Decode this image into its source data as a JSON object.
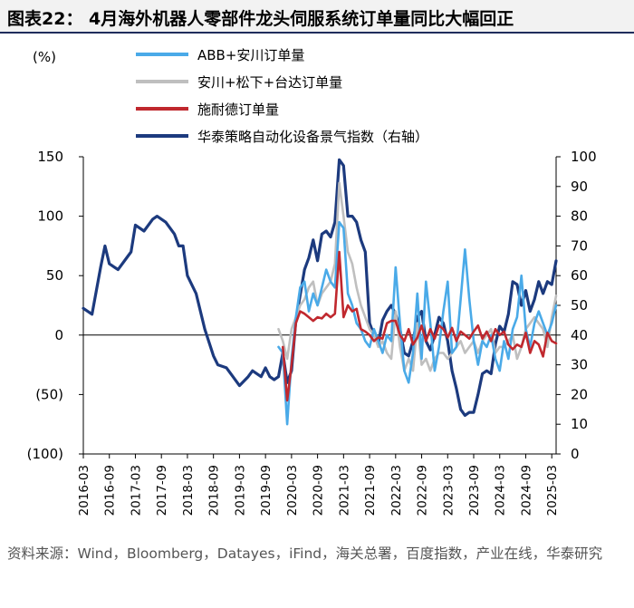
{
  "title": "图表22：  4月海外机器人零部件龙头伺服系统订单量同比大幅回正",
  "source": "资料来源：Wind，Bloomberg，Datayes，iFind，海关总署，百度指数，产业在线，华泰研究",
  "chart_data": {
    "type": "line",
    "left_axis": {
      "unit_label": "(%)",
      "range": [
        -100,
        150
      ],
      "ticks": [
        "150",
        "100",
        "50",
        "0",
        "(50)",
        "(100)"
      ]
    },
    "right_axis": {
      "range": [
        0,
        100
      ],
      "ticks": [
        "100",
        "90",
        "80",
        "70",
        "60",
        "50",
        "40",
        "30",
        "20",
        "10",
        "0"
      ]
    },
    "x_ticks": [
      "2016-03",
      "2016-09",
      "2017-03",
      "2017-09",
      "2018-03",
      "2018-09",
      "2019-03",
      "2019-09",
      "2020-03",
      "2020-09",
      "2021-03",
      "2021-09",
      "2022-03",
      "2022-09",
      "2023-03",
      "2023-09",
      "2024-03",
      "2024-09",
      "2025-03"
    ],
    "x_range": [
      "2016-03",
      "2025-04"
    ],
    "legend_position": "top-right",
    "series": [
      {
        "name": "ABB+安川订单量",
        "color": "#4aaae8",
        "axis": "left",
        "points": [
          [
            "2019-12",
            -10
          ],
          [
            "2020-01",
            -15
          ],
          [
            "2020-02",
            -75
          ],
          [
            "2020-03",
            -20
          ],
          [
            "2020-04",
            15
          ],
          [
            "2020-05",
            40
          ],
          [
            "2020-06",
            45
          ],
          [
            "2020-07",
            20
          ],
          [
            "2020-08",
            35
          ],
          [
            "2020-09",
            25
          ],
          [
            "2020-10",
            40
          ],
          [
            "2020-11",
            55
          ],
          [
            "2020-12",
            45
          ],
          [
            "2021-01",
            40
          ],
          [
            "2021-02",
            95
          ],
          [
            "2021-03",
            90
          ],
          [
            "2021-04",
            35
          ],
          [
            "2021-05",
            25
          ],
          [
            "2021-06",
            10
          ],
          [
            "2021-07",
            5
          ],
          [
            "2021-08",
            -5
          ],
          [
            "2021-09",
            -10
          ],
          [
            "2021-10",
            5
          ],
          [
            "2021-11",
            -5
          ],
          [
            "2021-12",
            -15
          ],
          [
            "2022-01",
            0
          ],
          [
            "2022-02",
            -5
          ],
          [
            "2022-03",
            57
          ],
          [
            "2022-04",
            10
          ],
          [
            "2022-05",
            -30
          ],
          [
            "2022-06",
            -40
          ],
          [
            "2022-07",
            -15
          ],
          [
            "2022-08",
            35
          ],
          [
            "2022-09",
            -20
          ],
          [
            "2022-10",
            45
          ],
          [
            "2022-11",
            10
          ],
          [
            "2022-12",
            -30
          ],
          [
            "2023-01",
            -10
          ],
          [
            "2023-02",
            20
          ],
          [
            "2023-03",
            45
          ],
          [
            "2023-04",
            -15
          ],
          [
            "2023-05",
            -10
          ],
          [
            "2023-06",
            30
          ],
          [
            "2023-07",
            72
          ],
          [
            "2023-08",
            30
          ],
          [
            "2023-09",
            -5
          ],
          [
            "2023-10",
            -25
          ],
          [
            "2023-11",
            -5
          ],
          [
            "2023-12",
            -10
          ],
          [
            "2024-01",
            0
          ],
          [
            "2024-02",
            -20
          ],
          [
            "2024-03",
            -30
          ],
          [
            "2024-04",
            -5
          ],
          [
            "2024-05",
            -20
          ],
          [
            "2024-06",
            5
          ],
          [
            "2024-07",
            15
          ],
          [
            "2024-08",
            50
          ],
          [
            "2024-09",
            5
          ],
          [
            "2024-10",
            -10
          ],
          [
            "2024-11",
            10
          ],
          [
            "2024-12",
            20
          ],
          [
            "2025-01",
            10
          ],
          [
            "2025-02",
            0
          ],
          [
            "2025-03",
            10
          ],
          [
            "2025-04",
            25
          ]
        ]
      },
      {
        "name": "安川+松下+台达订单量",
        "color": "#bfbfbf",
        "axis": "left",
        "points": [
          [
            "2019-12",
            5
          ],
          [
            "2020-01",
            -5
          ],
          [
            "2020-02",
            -20
          ],
          [
            "2020-03",
            5
          ],
          [
            "2020-04",
            15
          ],
          [
            "2020-05",
            25
          ],
          [
            "2020-06",
            30
          ],
          [
            "2020-07",
            40
          ],
          [
            "2020-08",
            45
          ],
          [
            "2020-09",
            25
          ],
          [
            "2020-10",
            35
          ],
          [
            "2020-11",
            40
          ],
          [
            "2020-12",
            45
          ],
          [
            "2021-01",
            60
          ],
          [
            "2021-02",
            128
          ],
          [
            "2021-03",
            100
          ],
          [
            "2021-04",
            70
          ],
          [
            "2021-05",
            60
          ],
          [
            "2021-06",
            40
          ],
          [
            "2021-07",
            25
          ],
          [
            "2021-08",
            15
          ],
          [
            "2021-09",
            5
          ],
          [
            "2021-10",
            0
          ],
          [
            "2021-11",
            -10
          ],
          [
            "2021-12",
            -5
          ],
          [
            "2022-01",
            -15
          ],
          [
            "2022-02",
            -20
          ],
          [
            "2022-03",
            20
          ],
          [
            "2022-04",
            -10
          ],
          [
            "2022-05",
            -30
          ],
          [
            "2022-06",
            -20
          ],
          [
            "2022-07",
            -30
          ],
          [
            "2022-08",
            10
          ],
          [
            "2022-09",
            -25
          ],
          [
            "2022-10",
            -20
          ],
          [
            "2022-11",
            -30
          ],
          [
            "2022-12",
            -20
          ],
          [
            "2023-01",
            -15
          ],
          [
            "2023-02",
            -15
          ],
          [
            "2023-03",
            -20
          ],
          [
            "2023-04",
            -15
          ],
          [
            "2023-05",
            -10
          ],
          [
            "2023-06",
            -5
          ],
          [
            "2023-07",
            -15
          ],
          [
            "2023-08",
            -10
          ],
          [
            "2023-09",
            -5
          ],
          [
            "2023-10",
            -15
          ],
          [
            "2023-11",
            -5
          ],
          [
            "2023-12",
            0
          ],
          [
            "2024-01",
            5
          ],
          [
            "2024-02",
            -15
          ],
          [
            "2024-03",
            -10
          ],
          [
            "2024-04",
            -10
          ],
          [
            "2024-05",
            -5
          ],
          [
            "2024-06",
            0
          ],
          [
            "2024-07",
            -20
          ],
          [
            "2024-08",
            -10
          ],
          [
            "2024-09",
            5
          ],
          [
            "2024-10",
            10
          ],
          [
            "2024-11",
            15
          ],
          [
            "2024-12",
            10
          ],
          [
            "2025-01",
            5
          ],
          [
            "2025-02",
            -10
          ],
          [
            "2025-03",
            15
          ],
          [
            "2025-04",
            33
          ]
        ]
      },
      {
        "name": "施耐德订单量",
        "color": "#c0282e",
        "axis": "left",
        "points": [
          [
            "2020-01",
            -10
          ],
          [
            "2020-02",
            -55
          ],
          [
            "2020-03",
            -25
          ],
          [
            "2020-04",
            10
          ],
          [
            "2020-05",
            20
          ],
          [
            "2020-06",
            18
          ],
          [
            "2020-07",
            15
          ],
          [
            "2020-08",
            12
          ],
          [
            "2020-09",
            15
          ],
          [
            "2020-10",
            14
          ],
          [
            "2020-11",
            18
          ],
          [
            "2020-12",
            15
          ],
          [
            "2021-01",
            18
          ],
          [
            "2021-02",
            70
          ],
          [
            "2021-03",
            15
          ],
          [
            "2021-04",
            25
          ],
          [
            "2021-05",
            20
          ],
          [
            "2021-06",
            22
          ],
          [
            "2021-07",
            5
          ],
          [
            "2021-08",
            3
          ],
          [
            "2021-09",
            0
          ],
          [
            "2021-10",
            -5
          ],
          [
            "2021-11",
            -2
          ],
          [
            "2021-12",
            -3
          ],
          [
            "2022-01",
            10
          ],
          [
            "2022-02",
            12
          ],
          [
            "2022-03",
            12
          ],
          [
            "2022-04",
            0
          ],
          [
            "2022-05",
            -5
          ],
          [
            "2022-06",
            5
          ],
          [
            "2022-07",
            -8
          ],
          [
            "2022-08",
            -2
          ],
          [
            "2022-09",
            8
          ],
          [
            "2022-10",
            -5
          ],
          [
            "2022-11",
            5
          ],
          [
            "2022-12",
            -3
          ],
          [
            "2023-01",
            8
          ],
          [
            "2023-02",
            5
          ],
          [
            "2023-03",
            -2
          ],
          [
            "2023-04",
            6
          ],
          [
            "2023-05",
            -5
          ],
          [
            "2023-06",
            3
          ],
          [
            "2023-07",
            0
          ],
          [
            "2023-08",
            -3
          ],
          [
            "2023-09",
            3
          ],
          [
            "2023-10",
            8
          ],
          [
            "2023-11",
            -3
          ],
          [
            "2023-12",
            3
          ],
          [
            "2024-01",
            -5
          ],
          [
            "2024-02",
            5
          ],
          [
            "2024-03",
            0
          ],
          [
            "2024-04",
            3
          ],
          [
            "2024-05",
            -8
          ],
          [
            "2024-06",
            -12
          ],
          [
            "2024-07",
            -8
          ],
          [
            "2024-08",
            -10
          ],
          [
            "2024-09",
            2
          ],
          [
            "2024-10",
            -15
          ],
          [
            "2024-11",
            -5
          ],
          [
            "2024-12",
            -8
          ],
          [
            "2025-01",
            -18
          ],
          [
            "2025-02",
            2
          ],
          [
            "2025-03",
            -5
          ],
          [
            "2025-04",
            -7
          ]
        ]
      },
      {
        "name": "华泰策略自动化设备景气指数（右轴）",
        "color": "#1c3a7e",
        "axis": "right",
        "points": [
          [
            "2016-03",
            49
          ],
          [
            "2016-05",
            47
          ],
          [
            "2016-07",
            63
          ],
          [
            "2016-08",
            70
          ],
          [
            "2016-09",
            64
          ],
          [
            "2016-11",
            62
          ],
          [
            "2017-01",
            66
          ],
          [
            "2017-02",
            68
          ],
          [
            "2017-03",
            77
          ],
          [
            "2017-05",
            75
          ],
          [
            "2017-07",
            79
          ],
          [
            "2017-08",
            80
          ],
          [
            "2017-10",
            78
          ],
          [
            "2017-12",
            74
          ],
          [
            "2018-01",
            70
          ],
          [
            "2018-02",
            70
          ],
          [
            "2018-03",
            60
          ],
          [
            "2018-05",
            54
          ],
          [
            "2018-07",
            42
          ],
          [
            "2018-09",
            33
          ],
          [
            "2018-10",
            30
          ],
          [
            "2018-12",
            29
          ],
          [
            "2019-01",
            27
          ],
          [
            "2019-03",
            23
          ],
          [
            "2019-05",
            26
          ],
          [
            "2019-06",
            28
          ],
          [
            "2019-08",
            26
          ],
          [
            "2019-09",
            29
          ],
          [
            "2019-10",
            26
          ],
          [
            "2019-11",
            25
          ],
          [
            "2019-12",
            26
          ],
          [
            "2020-01",
            34
          ],
          [
            "2020-02",
            24
          ],
          [
            "2020-03",
            28
          ],
          [
            "2020-04",
            45
          ],
          [
            "2020-06",
            62
          ],
          [
            "2020-07",
            66
          ],
          [
            "2020-08",
            72
          ],
          [
            "2020-09",
            65
          ],
          [
            "2020-10",
            74
          ],
          [
            "2020-11",
            75
          ],
          [
            "2020-12",
            73
          ],
          [
            "2021-01",
            78
          ],
          [
            "2021-02",
            99
          ],
          [
            "2021-03",
            97
          ],
          [
            "2021-04",
            80
          ],
          [
            "2021-05",
            80
          ],
          [
            "2021-06",
            78
          ],
          [
            "2021-07",
            72
          ],
          [
            "2021-08",
            68
          ],
          [
            "2021-09",
            44
          ],
          [
            "2021-10",
            40
          ],
          [
            "2021-11",
            37
          ],
          [
            "2021-12",
            45
          ],
          [
            "2022-01",
            48
          ],
          [
            "2022-02",
            50
          ],
          [
            "2022-03",
            47
          ],
          [
            "2022-04",
            42
          ],
          [
            "2022-05",
            34
          ],
          [
            "2022-06",
            33
          ],
          [
            "2022-07",
            38
          ],
          [
            "2022-08",
            46
          ],
          [
            "2022-09",
            48
          ],
          [
            "2022-10",
            38
          ],
          [
            "2022-11",
            35
          ],
          [
            "2022-12",
            40
          ],
          [
            "2023-01",
            46
          ],
          [
            "2023-02",
            44
          ],
          [
            "2023-03",
            38
          ],
          [
            "2023-04",
            28
          ],
          [
            "2023-05",
            22
          ],
          [
            "2023-06",
            15
          ],
          [
            "2023-07",
            13
          ],
          [
            "2023-08",
            14
          ],
          [
            "2023-09",
            14
          ],
          [
            "2023-10",
            20
          ],
          [
            "2023-11",
            27
          ],
          [
            "2023-12",
            28
          ],
          [
            "2024-01",
            27
          ],
          [
            "2024-02",
            37
          ],
          [
            "2024-03",
            43
          ],
          [
            "2024-04",
            41
          ],
          [
            "2024-05",
            47
          ],
          [
            "2024-06",
            58
          ],
          [
            "2024-07",
            57
          ],
          [
            "2024-08",
            50
          ],
          [
            "2024-09",
            55
          ],
          [
            "2024-10",
            48
          ],
          [
            "2024-11",
            52
          ],
          [
            "2024-12",
            58
          ],
          [
            "2025-01",
            54
          ],
          [
            "2025-02",
            58
          ],
          [
            "2025-03",
            57
          ],
          [
            "2025-04",
            65
          ]
        ]
      }
    ]
  }
}
